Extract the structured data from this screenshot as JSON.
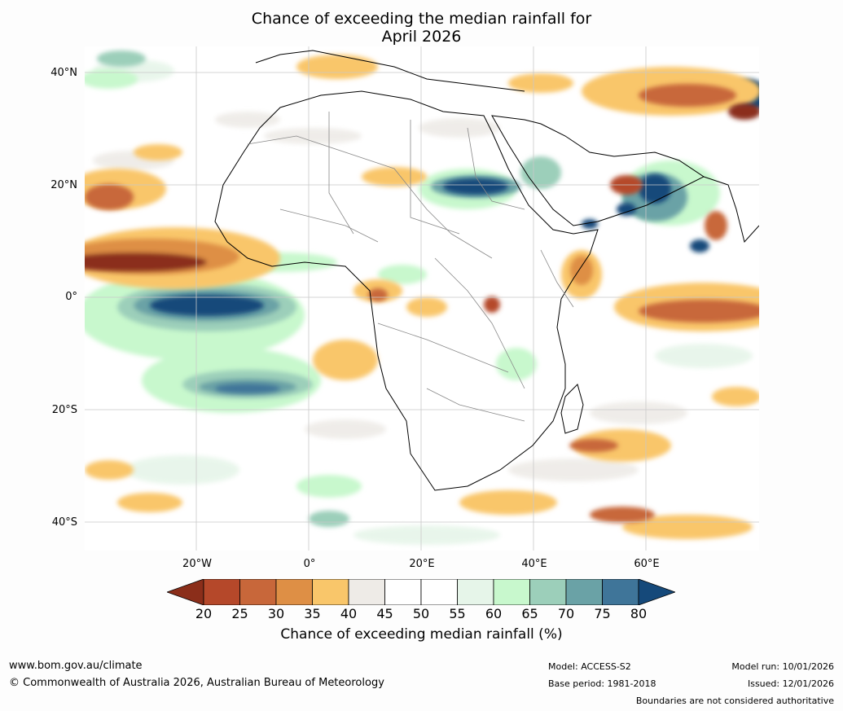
{
  "title": {
    "line1": "Chance of exceeding the median rainfall for",
    "line2": "April 2026"
  },
  "map": {
    "lat_labels": [
      "40°N",
      "20°N",
      "0°",
      "20°S",
      "40°S"
    ],
    "lon_labels": [
      "20°W",
      "0°",
      "20°E",
      "40°E",
      "60°E"
    ]
  },
  "legend": {
    "ticks": [
      "20",
      "25",
      "30",
      "35",
      "40",
      "45",
      "50",
      "55",
      "60",
      "65",
      "70",
      "75",
      "80"
    ],
    "colors": [
      "#8b2e1a",
      "#b5482a",
      "#c8673a",
      "#de8f45",
      "#f9c66a",
      "#eeebe7",
      "#ffffff",
      "#ffffff",
      "#e6f5e9",
      "#c8f8cd",
      "#9ccfba",
      "#6aa2a6",
      "#3f7599",
      "#15497a"
    ],
    "title": "Chance of exceeding median rainfall (%)"
  },
  "footer": {
    "website": "www.bom.gov.au/climate",
    "copyright": "© Commonwealth of Australia 2026, Australian Bureau of Meteorology",
    "model": "Model: ACCESS-S2",
    "base_period": "Base period: 1981-2018",
    "model_run": "Model run: 10/01/2026",
    "issued": "Issued: 12/01/2026",
    "disclaimer": "Boundaries are not considered authoritative"
  }
}
